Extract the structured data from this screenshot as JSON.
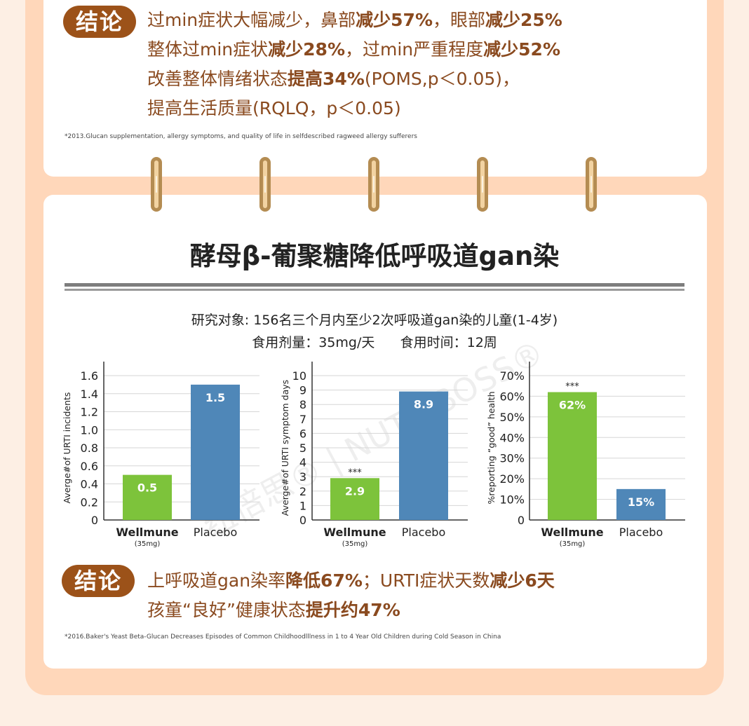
{
  "conclusion1": {
    "badge": "结论",
    "lines": [
      [
        {
          "t": "过min症状大幅减少，鼻部",
          "b": false
        },
        {
          "t": "减少57%",
          "b": true
        },
        {
          "t": "，眼部",
          "b": false
        },
        {
          "t": "减少25%",
          "b": true
        }
      ],
      [
        {
          "t": "整体过min症状",
          "b": false
        },
        {
          "t": "减少28%",
          "b": true
        },
        {
          "t": "，过min严重程度",
          "b": false
        },
        {
          "t": "减少52%",
          "b": true
        }
      ],
      [
        {
          "t": "改善整体情绪状态",
          "b": false
        },
        {
          "t": "提高34%",
          "b": true
        },
        {
          "t": "(POMS,p＜0.05)，",
          "b": false
        }
      ],
      [
        {
          "t": "提高生活质量(RQLQ，p＜0.05)",
          "b": false
        }
      ]
    ],
    "footnote": "*2013.Glucan supplementation, allergy symptoms, and quality of life in selfdescribed ragweed allergy sufferers"
  },
  "section_title": "酵母β-葡聚糖降低呼吸道gan染",
  "study_subject": "研究对象: 156名三个月内至少2次呼吸道gan染的儿童(1-4岁)",
  "study_dose": "食用剂量：35mg/天      食用时间：12周",
  "watermark": "纽倍思® | NUTRIBOSS®",
  "colors": {
    "wellmune": "#7dc33b",
    "placebo": "#4f87b8",
    "brown": "#9c5219",
    "text_brown": "#8a4a1f"
  },
  "chart_data": [
    {
      "type": "bar",
      "categories": [
        "Wellmune",
        "Placebo"
      ],
      "category_notes": [
        "(35mg)",
        ""
      ],
      "values": [
        0.5,
        1.5
      ],
      "value_labels": [
        "0.5",
        "1.5"
      ],
      "significance": [
        "",
        ""
      ],
      "ylabel": "Averge#of URTI incidents",
      "ylim": [
        0,
        1.6
      ],
      "yticks": [
        0,
        0.2,
        0.4,
        0.6,
        0.8,
        1.0,
        1.2,
        1.4,
        1.6
      ],
      "ytick_labels": [
        "0",
        "0.2",
        "0.4",
        "0.6",
        "0.8",
        "1.0",
        "1.2",
        "1.4",
        "1.6"
      ],
      "grid": true
    },
    {
      "type": "bar",
      "categories": [
        "Wellmune",
        "Placebo"
      ],
      "category_notes": [
        "(35mg)",
        ""
      ],
      "values": [
        2.9,
        8.9
      ],
      "value_labels": [
        "2.9",
        "8.9"
      ],
      "significance": [
        "***",
        ""
      ],
      "ylabel": "Averge#of URTI symptom days",
      "ylim": [
        0,
        10
      ],
      "yticks": [
        0,
        1,
        2,
        3,
        4,
        5,
        6,
        7,
        8,
        9,
        10
      ],
      "ytick_labels": [
        "0",
        "1",
        "2",
        "3",
        "4",
        "5",
        "6",
        "7",
        "8",
        "9",
        "10"
      ],
      "grid": true
    },
    {
      "type": "bar",
      "categories": [
        "Wellmune",
        "Placebo"
      ],
      "category_notes": [
        "(35mg)",
        ""
      ],
      "values": [
        62,
        15
      ],
      "value_labels": [
        "62%",
        "15%"
      ],
      "significance": [
        "***",
        ""
      ],
      "ylabel": "%reporting “good” health",
      "ylim": [
        0,
        70
      ],
      "yticks": [
        0,
        10,
        20,
        30,
        40,
        50,
        60,
        70
      ],
      "ytick_labels": [
        "0",
        "10%",
        "20%",
        "30%",
        "40%",
        "50%",
        "60%",
        "70%"
      ],
      "grid": true
    }
  ],
  "conclusion2": {
    "badge": "结论",
    "lines": [
      [
        {
          "t": "上呼吸道gan染率",
          "b": false
        },
        {
          "t": "降低67%",
          "b": true
        },
        {
          "t": "；URTI症状天数",
          "b": false
        },
        {
          "t": "减少6天",
          "b": true
        }
      ],
      [
        {
          "t": "孩童“良好”健康状态",
          "b": false
        },
        {
          "t": "提升约47%",
          "b": true
        }
      ]
    ],
    "footnote": "*2016.Baker's Yeast Beta-Glucan Decreases Episodes of Common Childhoodlllness in 1 to 4 Year Old Children during Cold Season in China"
  }
}
